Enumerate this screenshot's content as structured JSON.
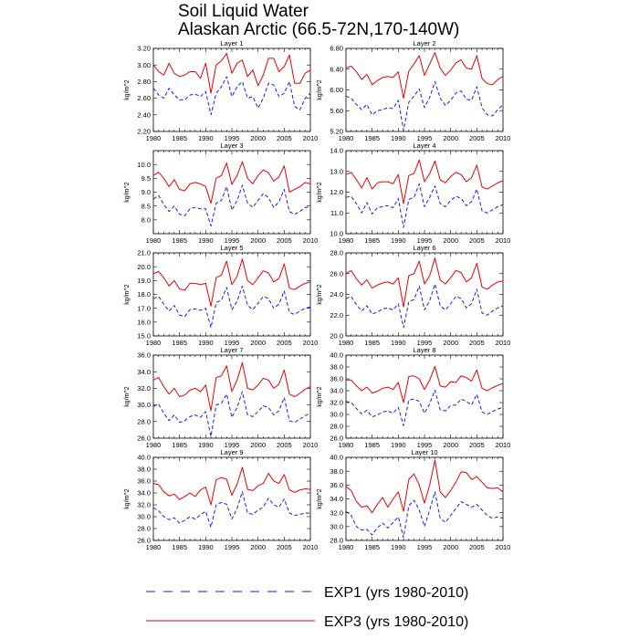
{
  "title": {
    "line1": "Soil Liquid Water",
    "line2": "Alaskan Arctic (66.5-72N,170-140W)"
  },
  "colors": {
    "exp1": "#1a1aff",
    "exp3": "#ee0000",
    "axis": "#000000"
  },
  "legend": [
    {
      "key": "exp1",
      "label": "EXP1 (yrs 1980-2010)",
      "style": "dashed"
    },
    {
      "key": "exp3",
      "label": "EXP3 (yrs 1980-2010)",
      "style": "solid"
    }
  ],
  "chart_data": [
    {
      "type": "line",
      "title": "Layer 1",
      "ylabel": "kg/m^2",
      "xlim": [
        1980,
        2010
      ],
      "ylim": [
        2.2,
        3.2
      ],
      "xticks": [
        1980,
        1985,
        1990,
        1995,
        2000,
        2005,
        2010
      ],
      "yticks": [
        "2.20",
        "2.40",
        "2.60",
        "2.80",
        "3.00",
        "3.20"
      ],
      "series": [
        {
          "name": "EXP3",
          "values": [
            3.0,
            2.92,
            2.88,
            3.02,
            2.9,
            2.86,
            2.88,
            2.92,
            2.92,
            2.84,
            3.02,
            2.66,
            3.0,
            3.05,
            3.14,
            2.9,
            3.02,
            3.06,
            2.86,
            2.94,
            2.75,
            2.88,
            3.08,
            3.08,
            2.92,
            2.98,
            3.12,
            2.78,
            2.78,
            2.9,
            2.94
          ]
        },
        {
          "name": "EXP1",
          "values": [
            2.72,
            2.64,
            2.6,
            2.72,
            2.64,
            2.58,
            2.58,
            2.64,
            2.65,
            2.62,
            2.68,
            2.4,
            2.66,
            2.74,
            2.86,
            2.62,
            2.74,
            2.8,
            2.6,
            2.62,
            2.48,
            2.6,
            2.78,
            2.76,
            2.62,
            2.66,
            2.8,
            2.5,
            2.46,
            2.6,
            2.66
          ]
        }
      ]
    },
    {
      "type": "line",
      "title": "Layer 2",
      "ylabel": "kg/m^2",
      "xlim": [
        1980,
        2010
      ],
      "ylim": [
        5.2,
        6.8
      ],
      "xticks": [
        1980,
        1985,
        1990,
        1995,
        2000,
        2005,
        2010
      ],
      "yticks": [
        "5.20",
        "5.60",
        "6.00",
        "6.40",
        "6.80"
      ],
      "series": [
        {
          "name": "EXP3",
          "values": [
            6.42,
            6.46,
            6.35,
            6.2,
            6.3,
            6.1,
            6.18,
            6.24,
            6.26,
            6.24,
            6.35,
            5.84,
            6.36,
            6.5,
            6.66,
            6.28,
            6.5,
            6.72,
            6.42,
            6.28,
            6.38,
            6.52,
            6.58,
            6.42,
            6.4,
            6.66,
            6.22,
            6.12,
            6.1,
            6.2,
            6.26
          ]
        },
        {
          "name": "EXP1",
          "values": [
            5.88,
            5.84,
            5.72,
            5.62,
            5.72,
            5.52,
            5.6,
            5.62,
            5.66,
            5.64,
            5.8,
            5.22,
            5.76,
            5.88,
            6.02,
            5.66,
            5.86,
            6.16,
            5.84,
            5.7,
            5.8,
            5.94,
            5.98,
            5.82,
            5.8,
            6.06,
            5.66,
            5.52,
            5.5,
            5.62,
            5.72
          ]
        }
      ]
    },
    {
      "type": "line",
      "title": "Layer 3",
      "ylabel": "kg/m^2",
      "xlim": [
        1980,
        2010
      ],
      "ylim": [
        7.5,
        10.5
      ],
      "xticks": [
        1980,
        1985,
        1990,
        1995,
        2000,
        2005,
        2010
      ],
      "yticks": [
        "8.0",
        "8.5",
        "9.0",
        "9.5",
        "10.0"
      ],
      "series": [
        {
          "name": "EXP3",
          "values": [
            9.6,
            9.72,
            9.5,
            9.2,
            9.45,
            9.1,
            9.05,
            9.3,
            9.35,
            9.3,
            9.2,
            8.6,
            9.5,
            9.6,
            10.05,
            9.28,
            9.6,
            10.1,
            9.5,
            9.3,
            9.6,
            9.8,
            9.7,
            9.4,
            9.55,
            9.95,
            9.0,
            9.1,
            9.2,
            9.35,
            9.3
          ]
        },
        {
          "name": "EXP1",
          "values": [
            8.75,
            8.88,
            8.55,
            8.3,
            8.5,
            8.2,
            8.15,
            8.4,
            8.45,
            8.4,
            8.4,
            7.78,
            8.6,
            8.7,
            9.2,
            8.35,
            8.7,
            9.25,
            8.6,
            8.45,
            8.7,
            8.95,
            8.8,
            8.45,
            8.65,
            9.1,
            8.3,
            8.2,
            8.3,
            8.45,
            8.45
          ]
        }
      ]
    },
    {
      "type": "line",
      "title": "Layer 4",
      "ylabel": "kg/m^2",
      "xlim": [
        1980,
        2010
      ],
      "ylim": [
        10.0,
        14.0
      ],
      "xticks": [
        1980,
        1985,
        1990,
        1995,
        2000,
        2005,
        2010
      ],
      "yticks": [
        "10.0",
        "11.0",
        "12.0",
        "13.0",
        "14.0"
      ],
      "series": [
        {
          "name": "EXP3",
          "values": [
            12.85,
            12.95,
            12.6,
            12.2,
            12.7,
            12.15,
            12.45,
            12.5,
            12.5,
            12.4,
            12.85,
            11.45,
            12.8,
            12.9,
            13.55,
            12.5,
            12.9,
            13.5,
            12.6,
            12.45,
            12.75,
            12.95,
            12.85,
            12.5,
            12.7,
            13.3,
            12.25,
            12.15,
            12.3,
            12.45,
            12.55
          ]
        },
        {
          "name": "EXP1",
          "values": [
            11.75,
            11.8,
            11.45,
            11.0,
            11.5,
            10.95,
            11.25,
            11.3,
            11.35,
            11.25,
            11.7,
            10.3,
            11.65,
            11.75,
            12.4,
            11.3,
            11.75,
            12.3,
            11.45,
            11.3,
            11.6,
            11.8,
            11.7,
            11.35,
            11.55,
            12.15,
            11.1,
            11.0,
            11.15,
            11.3,
            11.4
          ]
        }
      ]
    },
    {
      "type": "line",
      "title": "Layer 5",
      "ylabel": "kg/m^2",
      "xlim": [
        1980,
        2010
      ],
      "ylim": [
        15.0,
        21.0
      ],
      "xticks": [
        1980,
        1985,
        1990,
        1995,
        2000,
        2005,
        2010
      ],
      "yticks": [
        "15.0",
        "16.0",
        "17.0",
        "18.0",
        "19.0",
        "20.0",
        "21.0"
      ],
      "series": [
        {
          "name": "EXP3",
          "values": [
            19.5,
            19.65,
            19.2,
            18.6,
            19.0,
            18.4,
            18.3,
            18.8,
            18.8,
            18.7,
            18.8,
            17.15,
            19.2,
            19.4,
            20.4,
            18.7,
            19.3,
            20.55,
            19.0,
            18.7,
            19.2,
            19.7,
            19.55,
            18.9,
            19.15,
            20.2,
            18.45,
            18.35,
            18.6,
            18.8,
            18.9
          ]
        },
        {
          "name": "EXP1",
          "values": [
            17.7,
            17.85,
            17.3,
            16.8,
            17.2,
            16.5,
            16.4,
            16.9,
            16.95,
            16.85,
            17.0,
            15.6,
            17.4,
            17.6,
            18.5,
            16.9,
            17.5,
            18.6,
            17.2,
            16.9,
            17.35,
            17.85,
            17.7,
            17.0,
            17.3,
            18.25,
            16.7,
            16.55,
            16.8,
            17.0,
            17.1
          ]
        }
      ]
    },
    {
      "type": "line",
      "title": "Layer 6",
      "ylabel": "kg/m^2",
      "xlim": [
        1980,
        2010
      ],
      "ylim": [
        20.0,
        28.0
      ],
      "xticks": [
        1980,
        1985,
        1990,
        1995,
        2000,
        2005,
        2010
      ],
      "yticks": [
        "20.0",
        "22.0",
        "24.0",
        "26.0",
        "28.0"
      ],
      "series": [
        {
          "name": "EXP3",
          "values": [
            26.0,
            26.3,
            25.5,
            24.9,
            25.4,
            24.6,
            24.9,
            25.1,
            25.2,
            25.0,
            25.6,
            22.8,
            25.8,
            26.0,
            27.2,
            25.0,
            25.8,
            27.5,
            25.4,
            25.0,
            25.6,
            26.3,
            26.1,
            25.2,
            25.6,
            27.0,
            24.7,
            24.5,
            24.9,
            25.2,
            25.3
          ]
        },
        {
          "name": "EXP1",
          "values": [
            23.6,
            23.8,
            23.0,
            22.4,
            22.9,
            22.1,
            22.3,
            22.6,
            22.7,
            22.5,
            23.1,
            20.8,
            23.3,
            23.5,
            24.8,
            22.5,
            23.4,
            25.0,
            22.9,
            22.5,
            23.1,
            23.8,
            23.6,
            22.7,
            23.1,
            24.5,
            22.2,
            22.0,
            22.4,
            22.7,
            22.9
          ]
        }
      ]
    },
    {
      "type": "line",
      "title": "Layer 7",
      "ylabel": "kg/m^2",
      "xlim": [
        1980,
        2010
      ],
      "ylim": [
        26.0,
        36.0
      ],
      "xticks": [
        1980,
        1985,
        1990,
        1995,
        2000,
        2005,
        2010
      ],
      "yticks": [
        "26.0",
        "28.0",
        "30.0",
        "32.0",
        "34.0",
        "36.0"
      ],
      "series": [
        {
          "name": "EXP3",
          "values": [
            33.0,
            33.3,
            32.2,
            31.3,
            32.0,
            31.0,
            31.2,
            31.8,
            32.0,
            31.6,
            32.4,
            29.3,
            33.3,
            33.5,
            34.7,
            31.6,
            33.0,
            35.1,
            32.0,
            31.8,
            32.4,
            33.2,
            33.0,
            32.0,
            32.5,
            34.2,
            31.3,
            31.0,
            31.4,
            31.9,
            32.2
          ]
        },
        {
          "name": "EXP1",
          "values": [
            29.8,
            30.1,
            29.0,
            28.1,
            28.8,
            27.9,
            28.1,
            28.6,
            28.8,
            28.5,
            29.2,
            26.2,
            30.0,
            30.2,
            31.3,
            28.5,
            29.7,
            31.6,
            28.8,
            28.6,
            29.2,
            29.9,
            29.7,
            28.8,
            29.3,
            30.9,
            28.1,
            27.9,
            28.3,
            28.7,
            29.0
          ]
        }
      ]
    },
    {
      "type": "line",
      "title": "Layer 8",
      "ylabel": "kg/m^2",
      "xlim": [
        1980,
        2010
      ],
      "ylim": [
        26.0,
        40.0
      ],
      "xticks": [
        1980,
        1985,
        1990,
        1995,
        2000,
        2005,
        2010
      ],
      "yticks": [
        "26.0",
        "28.0",
        "30.0",
        "32.0",
        "34.0",
        "36.0",
        "38.0",
        "40.0"
      ],
      "series": [
        {
          "name": "EXP3",
          "values": [
            35.8,
            35.8,
            34.8,
            34.0,
            34.6,
            33.6,
            33.9,
            34.4,
            34.6,
            34.2,
            35.4,
            32.0,
            36.4,
            36.5,
            36.0,
            34.2,
            35.8,
            38.1,
            34.8,
            34.6,
            35.5,
            35.4,
            36.5,
            36.2,
            35.6,
            37.5,
            34.4,
            34.0,
            34.5,
            34.9,
            35.2
          ]
        },
        {
          "name": "EXP1",
          "values": [
            32.2,
            32.0,
            31.0,
            30.1,
            30.7,
            29.6,
            29.9,
            30.4,
            30.6,
            30.2,
            31.2,
            28.1,
            32.4,
            32.6,
            32.2,
            30.2,
            31.8,
            34.1,
            30.8,
            30.6,
            31.5,
            31.6,
            32.6,
            32.2,
            31.6,
            33.4,
            30.4,
            30.0,
            30.5,
            30.9,
            31.2
          ]
        }
      ]
    },
    {
      "type": "line",
      "title": "Layer 9",
      "ylabel": "kg/m^2",
      "xlim": [
        1980,
        2010
      ],
      "ylim": [
        26.0,
        40.0
      ],
      "xticks": [
        1980,
        1985,
        1990,
        1995,
        2000,
        2005,
        2010
      ],
      "yticks": [
        "26.0",
        "28.0",
        "30.0",
        "32.0",
        "34.0",
        "36.0",
        "38.0",
        "40.0"
      ],
      "series": [
        {
          "name": "EXP3",
          "values": [
            35.6,
            35.4,
            34.2,
            33.5,
            33.8,
            32.9,
            33.4,
            34.0,
            33.4,
            34.5,
            35.0,
            32.0,
            36.2,
            36.6,
            36.3,
            33.6,
            35.5,
            38.3,
            34.6,
            34.4,
            35.2,
            35.6,
            37.3,
            36.0,
            35.6,
            37.1,
            34.5,
            34.1,
            34.5,
            34.7,
            34.6
          ]
        },
        {
          "name": "EXP1",
          "values": [
            31.5,
            31.0,
            30.0,
            29.5,
            29.8,
            28.9,
            29.4,
            30.0,
            29.6,
            30.3,
            30.9,
            28.2,
            32.0,
            32.4,
            32.1,
            29.6,
            31.4,
            34.2,
            30.6,
            30.4,
            31.1,
            31.6,
            33.1,
            32.0,
            31.6,
            33.0,
            30.6,
            30.2,
            30.4,
            30.6,
            30.6
          ]
        }
      ]
    },
    {
      "type": "line",
      "title": "Layer 10",
      "ylabel": "kg/m^2",
      "xlim": [
        1980,
        2010
      ],
      "ylim": [
        28.0,
        40.0
      ],
      "xticks": [
        1980,
        1985,
        1990,
        1995,
        2000,
        2005,
        2010
      ],
      "yticks": [
        "28.0",
        "30.0",
        "32.0",
        "34.0",
        "36.0",
        "38.0",
        "40.0"
      ],
      "series": [
        {
          "name": "EXP3",
          "values": [
            35.8,
            35.2,
            33.6,
            32.8,
            33.0,
            32.0,
            33.2,
            34.2,
            32.8,
            34.0,
            35.0,
            32.2,
            36.8,
            37.6,
            36.0,
            33.4,
            36.0,
            39.6,
            35.0,
            34.2,
            35.2,
            36.4,
            37.9,
            37.8,
            36.8,
            37.2,
            36.4,
            35.6,
            35.5,
            35.6,
            35.0
          ]
        },
        {
          "name": "EXP1",
          "values": [
            32.2,
            31.6,
            30.0,
            29.5,
            29.6,
            28.8,
            29.8,
            30.5,
            29.8,
            30.6,
            31.4,
            28.4,
            33.0,
            33.8,
            32.4,
            30.0,
            32.4,
            35.0,
            31.2,
            30.6,
            31.6,
            32.6,
            33.6,
            33.2,
            32.8,
            33.2,
            32.4,
            31.6,
            31.2,
            31.4,
            31.2
          ]
        }
      ]
    }
  ]
}
